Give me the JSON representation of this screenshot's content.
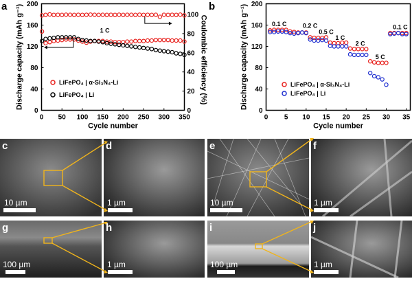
{
  "chart_data": [
    {
      "panel": "a",
      "type": "scatter",
      "xlabel": "Cycle number",
      "ylabel": "Discharge capacity (mAh g⁻¹)",
      "y2label": "Coulombic efficiency (%)",
      "xlim": [
        0,
        350
      ],
      "ylim": [
        0,
        200
      ],
      "y2lim": [
        0,
        111.1
      ],
      "xticks": [
        "0",
        "50",
        "100",
        "150",
        "200",
        "250",
        "300",
        "350"
      ],
      "yticks": [
        "0",
        "40",
        "80",
        "120",
        "160",
        "200"
      ],
      "y2ticks": [
        "0",
        "20",
        "40",
        "60",
        "80",
        "100"
      ],
      "annotation": "1 C",
      "legend_position": "lower-left",
      "x": [
        1,
        10,
        20,
        30,
        40,
        50,
        60,
        70,
        80,
        90,
        100,
        110,
        120,
        130,
        140,
        150,
        160,
        170,
        180,
        190,
        200,
        210,
        220,
        230,
        240,
        250,
        260,
        270,
        280,
        290,
        300,
        310,
        320,
        330,
        340,
        350
      ],
      "series": [
        {
          "name": "LiFePO₄ | α-Si₃N₄-Li",
          "axis": "left",
          "color": "#e8231f",
          "values": [
            148,
            126,
            128,
            130,
            131,
            132,
            133,
            133,
            133,
            131,
            129,
            127,
            129,
            130,
            130,
            130,
            129,
            129,
            128,
            128,
            128,
            129,
            129,
            130,
            130,
            130,
            131,
            131,
            132,
            132,
            132,
            132,
            131,
            131,
            131,
            129
          ]
        },
        {
          "name": "LiFePO₄ | Li",
          "axis": "left",
          "color": "#000000",
          "values": [
            130,
            134,
            135,
            136,
            137,
            137,
            137,
            137,
            137,
            134,
            132,
            131,
            130,
            130,
            129,
            128,
            126,
            125,
            124,
            123,
            122,
            121,
            120,
            119,
            118,
            117,
            116,
            115,
            113,
            112,
            111,
            110,
            109,
            107,
            106,
            104
          ]
        },
        {
          "name": "LiFePO₄ | α-Si₃N₄-Li efficiency",
          "axis": "right",
          "color": "#e8231f",
          "values": [
            99,
            99.5,
            100,
            99.5,
            99.6,
            99.5,
            99.7,
            99.6,
            99.5,
            99.6,
            99.5,
            99.6,
            99.8,
            99.6,
            99.5,
            99.6,
            99.5,
            99.6,
            99.5,
            99.7,
            99.5,
            99.6,
            99.6,
            99.5,
            99.7,
            99.5,
            99.6,
            99.5,
            99.6,
            97.5,
            99.6,
            99.5,
            99.6,
            99.5,
            99.8,
            99.0
          ]
        }
      ]
    },
    {
      "panel": "b",
      "type": "scatter",
      "xlabel": "Cycle number",
      "ylabel": "Discharge capacity (mAh g⁻¹)",
      "xlim": [
        0,
        36
      ],
      "ylim": [
        0,
        200
      ],
      "xticks": [
        "0",
        "5",
        "10",
        "15",
        "20",
        "25",
        "30",
        "35"
      ],
      "yticks": [
        "0",
        "40",
        "80",
        "120",
        "160",
        "200"
      ],
      "legend_position": "lower-left",
      "x": [
        1,
        2,
        3,
        4,
        5,
        6,
        7,
        8,
        9,
        10,
        11,
        12,
        13,
        14,
        15,
        16,
        17,
        18,
        19,
        20,
        21,
        22,
        23,
        24,
        25,
        26,
        27,
        28,
        29,
        30,
        31,
        32,
        33,
        34,
        35
      ],
      "series": [
        {
          "name": "LiFePO₄ | α-Si₃N₄-Li",
          "color": "#e8231f",
          "values": [
            150,
            151,
            151,
            151,
            151,
            148,
            147,
            146,
            146,
            146,
            137,
            136,
            136,
            136,
            137,
            127,
            126,
            126,
            127,
            127,
            116,
            115,
            115,
            115,
            115,
            92,
            90,
            89,
            89,
            89,
            145,
            145,
            145,
            145,
            145
          ]
        },
        {
          "name": "LiFePO₄ | Li",
          "color": "#1f2fd0",
          "values": [
            147,
            147,
            148,
            148,
            147,
            145,
            144,
            145,
            146,
            145,
            133,
            131,
            131,
            132,
            131,
            121,
            120,
            120,
            120,
            120,
            105,
            104,
            104,
            104,
            104,
            70,
            64,
            62,
            58,
            48,
            143,
            144,
            145,
            143,
            143
          ]
        }
      ],
      "annotations": [
        {
          "text": "0.1 C",
          "cycle": 3.3,
          "capacity": 158
        },
        {
          "text": "0.2 C",
          "cycle": 11,
          "capacity": 155
        },
        {
          "text": "0.5 C",
          "cycle": 15,
          "capacity": 143
        },
        {
          "text": "1 C",
          "cycle": 18.5,
          "capacity": 132
        },
        {
          "text": "2 C",
          "cycle": 23.5,
          "capacity": 121
        },
        {
          "text": "5 C",
          "cycle": 28.5,
          "capacity": 96
        },
        {
          "text": "0.1 C",
          "cycle": 33.5,
          "capacity": 152
        }
      ]
    }
  ],
  "panels": {
    "a": "a",
    "b": "b",
    "c": {
      "label": "c",
      "scale": "10 µm"
    },
    "d": {
      "label": "d",
      "scale": "1 µm"
    },
    "e": {
      "label": "e",
      "scale": "10 µm"
    },
    "f": {
      "label": "f",
      "scale": "1 µm"
    },
    "g": {
      "label": "g",
      "scale": "100 µm"
    },
    "h": {
      "label": "h",
      "scale": "1 µm"
    },
    "i": {
      "label": "i",
      "scale": "100 µm"
    },
    "j": {
      "label": "j",
      "scale": "1 µm"
    }
  },
  "colors": {
    "highlight": "#f0b41c"
  }
}
